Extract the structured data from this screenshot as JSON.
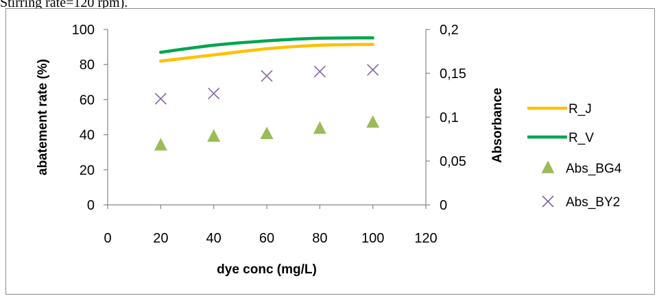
{
  "caption": "Stirring rate=120 rpm).",
  "chart_data": {
    "type": "line",
    "x": [
      20,
      40,
      60,
      80,
      100
    ],
    "xlim": [
      0,
      120
    ],
    "x_ticks": [
      "0",
      "20",
      "40",
      "60",
      "80",
      "100",
      "120"
    ],
    "xlabel": "dye conc (mg/L)",
    "ylabel": "abatement rate (%)",
    "ylim": [
      0,
      100
    ],
    "y_ticks": [
      "0",
      "20",
      "40",
      "60",
      "80",
      "100"
    ],
    "y2label": "Absorbance",
    "y2lim": [
      0,
      0.2
    ],
    "y2_ticks": [
      "0",
      "0,05",
      "0,1",
      "0,15",
      "0,2"
    ],
    "grid": false,
    "legend_position": "right",
    "series": [
      {
        "name": "R_J",
        "axis": "left",
        "style": "line",
        "color": "#ffc000",
        "values": [
          82,
          85.5,
          89,
          91,
          91.5
        ]
      },
      {
        "name": "R_V",
        "axis": "left",
        "style": "line",
        "color": "#00a550",
        "values": [
          87,
          91,
          93.5,
          95,
          95.2
        ]
      },
      {
        "name": "Abs_BG4",
        "axis": "right",
        "style": "marker-triangle",
        "color": "#9bbb59",
        "values": [
          0.068,
          0.078,
          0.081,
          0.087,
          0.094
        ]
      },
      {
        "name": "Abs_BY2",
        "axis": "right",
        "style": "marker-x",
        "color": "#8064a2",
        "values": [
          0.121,
          0.127,
          0.147,
          0.152,
          0.154
        ]
      }
    ]
  }
}
